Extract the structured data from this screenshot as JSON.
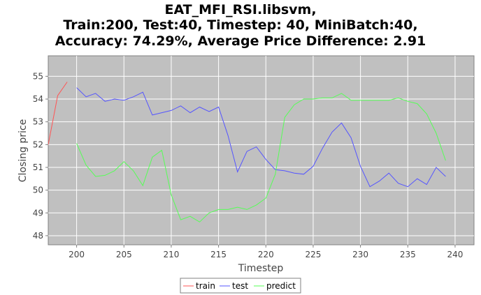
{
  "chart_data": {
    "type": "line",
    "title_lines": [
      "EAT_MFI_RSI.libsvm,",
      "Train:200, Test:40, Timestep: 40, MiniBatch:40,",
      "Accuracy: 74.29%, Average Price Difference: 2.91"
    ],
    "xlabel": "Timestep",
    "ylabel": "Closing price",
    "xlim": [
      197,
      242
    ],
    "ylim": [
      47.6,
      55.9
    ],
    "x_ticks": [
      200,
      205,
      210,
      215,
      220,
      225,
      230,
      235,
      240
    ],
    "y_ticks": [
      48,
      49,
      50,
      51,
      52,
      53,
      54,
      55
    ],
    "grid": true,
    "legend_position": "bottom-center",
    "background": "#c0c0c0",
    "series": [
      {
        "name": "train",
        "color": "#ff5555",
        "x": [
          197,
          198,
          199
        ],
        "y": [
          52.0,
          54.15,
          54.75
        ]
      },
      {
        "name": "test",
        "color": "#5555ff",
        "x": [
          200,
          201,
          202,
          203,
          204,
          205,
          206,
          207,
          208,
          209,
          210,
          211,
          212,
          213,
          214,
          215,
          216,
          217,
          218,
          219,
          220,
          221,
          222,
          223,
          224,
          225,
          226,
          227,
          228,
          229,
          230,
          231,
          232,
          233,
          234,
          235,
          236,
          237,
          238,
          239
        ],
        "y": [
          54.5,
          54.1,
          54.25,
          53.9,
          54.0,
          53.95,
          54.1,
          54.3,
          53.3,
          53.4,
          53.5,
          53.7,
          53.4,
          53.65,
          53.45,
          53.65,
          52.4,
          50.8,
          51.7,
          51.9,
          51.35,
          50.9,
          50.85,
          50.75,
          50.7,
          51.05,
          51.85,
          52.55,
          52.95,
          52.3,
          51.05,
          50.15,
          50.4,
          50.75,
          50.3,
          50.15,
          50.5,
          50.25,
          51.0,
          50.6
        ]
      },
      {
        "name": "predict",
        "color": "#55ff55",
        "x": [
          200,
          201,
          202,
          203,
          204,
          205,
          206,
          207,
          208,
          209,
          210,
          211,
          212,
          213,
          214,
          215,
          216,
          217,
          218,
          219,
          220,
          221,
          222,
          223,
          224,
          225,
          226,
          227,
          228,
          229,
          230,
          231,
          232,
          233,
          234,
          235,
          236,
          237,
          238,
          239
        ],
        "y": [
          52.05,
          51.1,
          50.6,
          50.65,
          50.85,
          51.25,
          50.85,
          50.2,
          51.45,
          51.75,
          49.8,
          48.7,
          48.85,
          48.6,
          49.0,
          49.15,
          49.15,
          49.25,
          49.15,
          49.35,
          49.65,
          50.7,
          53.2,
          53.75,
          54.0,
          54.0,
          54.05,
          54.05,
          54.25,
          53.95,
          53.95,
          53.95,
          53.95,
          53.95,
          54.05,
          53.9,
          53.8,
          53.35,
          52.5,
          51.3
        ]
      }
    ]
  }
}
